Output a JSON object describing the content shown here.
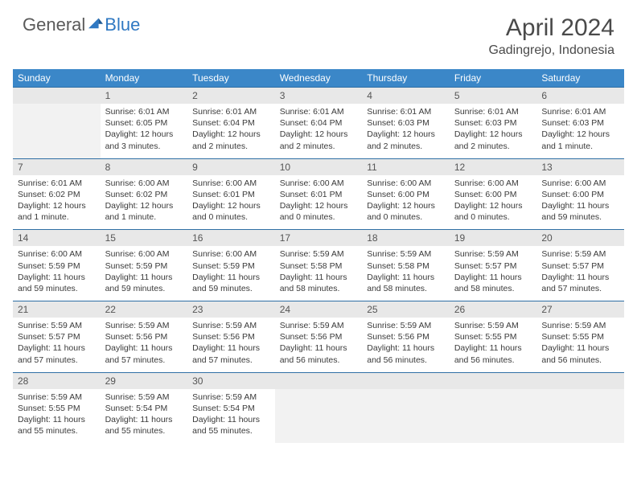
{
  "brand": {
    "part1": "General",
    "part2": "Blue"
  },
  "title": "April 2024",
  "location": "Gadingrejo, Indonesia",
  "colors": {
    "header_bg": "#3b87c8",
    "date_bg": "#e8e8e8",
    "accent": "#2f78c2",
    "brand_gray": "#5a5a5a",
    "text": "#3a3a3a"
  },
  "days_of_week": [
    "Sunday",
    "Monday",
    "Tuesday",
    "Wednesday",
    "Thursday",
    "Friday",
    "Saturday"
  ],
  "weeks": [
    {
      "dates": [
        "",
        "1",
        "2",
        "3",
        "4",
        "5",
        "6"
      ],
      "cells": [
        null,
        {
          "sunrise": "Sunrise: 6:01 AM",
          "sunset": "Sunset: 6:05 PM",
          "daylight": "Daylight: 12 hours and 3 minutes."
        },
        {
          "sunrise": "Sunrise: 6:01 AM",
          "sunset": "Sunset: 6:04 PM",
          "daylight": "Daylight: 12 hours and 2 minutes."
        },
        {
          "sunrise": "Sunrise: 6:01 AM",
          "sunset": "Sunset: 6:04 PM",
          "daylight": "Daylight: 12 hours and 2 minutes."
        },
        {
          "sunrise": "Sunrise: 6:01 AM",
          "sunset": "Sunset: 6:03 PM",
          "daylight": "Daylight: 12 hours and 2 minutes."
        },
        {
          "sunrise": "Sunrise: 6:01 AM",
          "sunset": "Sunset: 6:03 PM",
          "daylight": "Daylight: 12 hours and 2 minutes."
        },
        {
          "sunrise": "Sunrise: 6:01 AM",
          "sunset": "Sunset: 6:03 PM",
          "daylight": "Daylight: 12 hours and 1 minute."
        }
      ]
    },
    {
      "dates": [
        "7",
        "8",
        "9",
        "10",
        "11",
        "12",
        "13"
      ],
      "cells": [
        {
          "sunrise": "Sunrise: 6:01 AM",
          "sunset": "Sunset: 6:02 PM",
          "daylight": "Daylight: 12 hours and 1 minute."
        },
        {
          "sunrise": "Sunrise: 6:00 AM",
          "sunset": "Sunset: 6:02 PM",
          "daylight": "Daylight: 12 hours and 1 minute."
        },
        {
          "sunrise": "Sunrise: 6:00 AM",
          "sunset": "Sunset: 6:01 PM",
          "daylight": "Daylight: 12 hours and 0 minutes."
        },
        {
          "sunrise": "Sunrise: 6:00 AM",
          "sunset": "Sunset: 6:01 PM",
          "daylight": "Daylight: 12 hours and 0 minutes."
        },
        {
          "sunrise": "Sunrise: 6:00 AM",
          "sunset": "Sunset: 6:00 PM",
          "daylight": "Daylight: 12 hours and 0 minutes."
        },
        {
          "sunrise": "Sunrise: 6:00 AM",
          "sunset": "Sunset: 6:00 PM",
          "daylight": "Daylight: 12 hours and 0 minutes."
        },
        {
          "sunrise": "Sunrise: 6:00 AM",
          "sunset": "Sunset: 6:00 PM",
          "daylight": "Daylight: 11 hours and 59 minutes."
        }
      ]
    },
    {
      "dates": [
        "14",
        "15",
        "16",
        "17",
        "18",
        "19",
        "20"
      ],
      "cells": [
        {
          "sunrise": "Sunrise: 6:00 AM",
          "sunset": "Sunset: 5:59 PM",
          "daylight": "Daylight: 11 hours and 59 minutes."
        },
        {
          "sunrise": "Sunrise: 6:00 AM",
          "sunset": "Sunset: 5:59 PM",
          "daylight": "Daylight: 11 hours and 59 minutes."
        },
        {
          "sunrise": "Sunrise: 6:00 AM",
          "sunset": "Sunset: 5:59 PM",
          "daylight": "Daylight: 11 hours and 59 minutes."
        },
        {
          "sunrise": "Sunrise: 5:59 AM",
          "sunset": "Sunset: 5:58 PM",
          "daylight": "Daylight: 11 hours and 58 minutes."
        },
        {
          "sunrise": "Sunrise: 5:59 AM",
          "sunset": "Sunset: 5:58 PM",
          "daylight": "Daylight: 11 hours and 58 minutes."
        },
        {
          "sunrise": "Sunrise: 5:59 AM",
          "sunset": "Sunset: 5:57 PM",
          "daylight": "Daylight: 11 hours and 58 minutes."
        },
        {
          "sunrise": "Sunrise: 5:59 AM",
          "sunset": "Sunset: 5:57 PM",
          "daylight": "Daylight: 11 hours and 57 minutes."
        }
      ]
    },
    {
      "dates": [
        "21",
        "22",
        "23",
        "24",
        "25",
        "26",
        "27"
      ],
      "cells": [
        {
          "sunrise": "Sunrise: 5:59 AM",
          "sunset": "Sunset: 5:57 PM",
          "daylight": "Daylight: 11 hours and 57 minutes."
        },
        {
          "sunrise": "Sunrise: 5:59 AM",
          "sunset": "Sunset: 5:56 PM",
          "daylight": "Daylight: 11 hours and 57 minutes."
        },
        {
          "sunrise": "Sunrise: 5:59 AM",
          "sunset": "Sunset: 5:56 PM",
          "daylight": "Daylight: 11 hours and 57 minutes."
        },
        {
          "sunrise": "Sunrise: 5:59 AM",
          "sunset": "Sunset: 5:56 PM",
          "daylight": "Daylight: 11 hours and 56 minutes."
        },
        {
          "sunrise": "Sunrise: 5:59 AM",
          "sunset": "Sunset: 5:56 PM",
          "daylight": "Daylight: 11 hours and 56 minutes."
        },
        {
          "sunrise": "Sunrise: 5:59 AM",
          "sunset": "Sunset: 5:55 PM",
          "daylight": "Daylight: 11 hours and 56 minutes."
        },
        {
          "sunrise": "Sunrise: 5:59 AM",
          "sunset": "Sunset: 5:55 PM",
          "daylight": "Daylight: 11 hours and 56 minutes."
        }
      ]
    },
    {
      "dates": [
        "28",
        "29",
        "30",
        "",
        "",
        "",
        ""
      ],
      "cells": [
        {
          "sunrise": "Sunrise: 5:59 AM",
          "sunset": "Sunset: 5:55 PM",
          "daylight": "Daylight: 11 hours and 55 minutes."
        },
        {
          "sunrise": "Sunrise: 5:59 AM",
          "sunset": "Sunset: 5:54 PM",
          "daylight": "Daylight: 11 hours and 55 minutes."
        },
        {
          "sunrise": "Sunrise: 5:59 AM",
          "sunset": "Sunset: 5:54 PM",
          "daylight": "Daylight: 11 hours and 55 minutes."
        },
        null,
        null,
        null,
        null
      ]
    }
  ]
}
